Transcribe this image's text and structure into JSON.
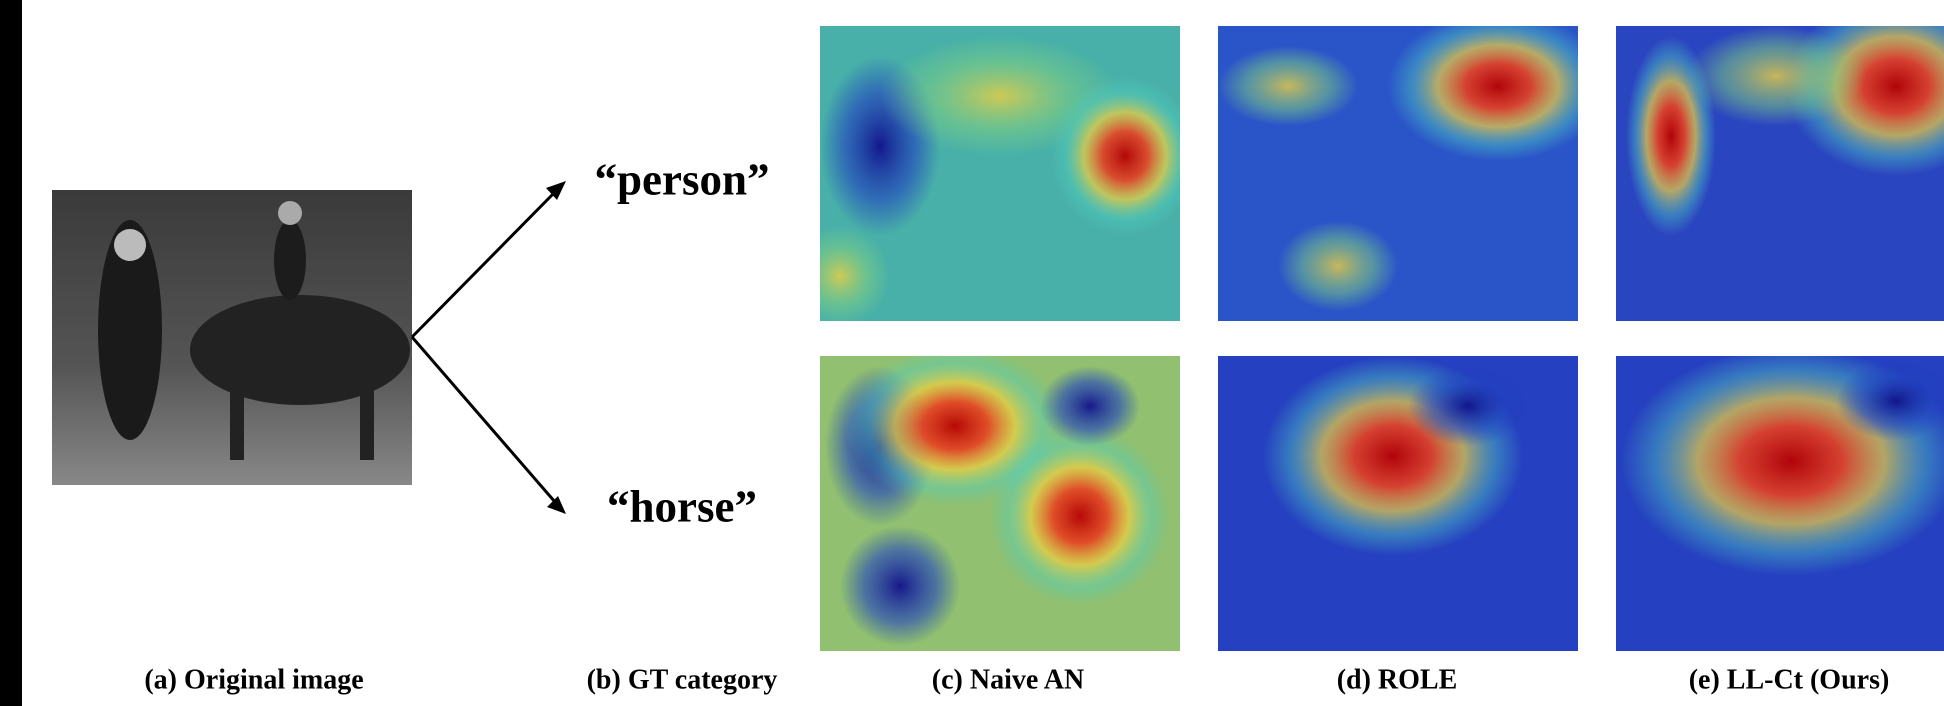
{
  "labels": [
    "“person”",
    "“horse”"
  ],
  "captions": [
    "(a) Original image",
    "(b) GT category",
    "(c) Naive AN",
    "(d) ROLE",
    "(e) LL-Ct (Ours)"
  ]
}
